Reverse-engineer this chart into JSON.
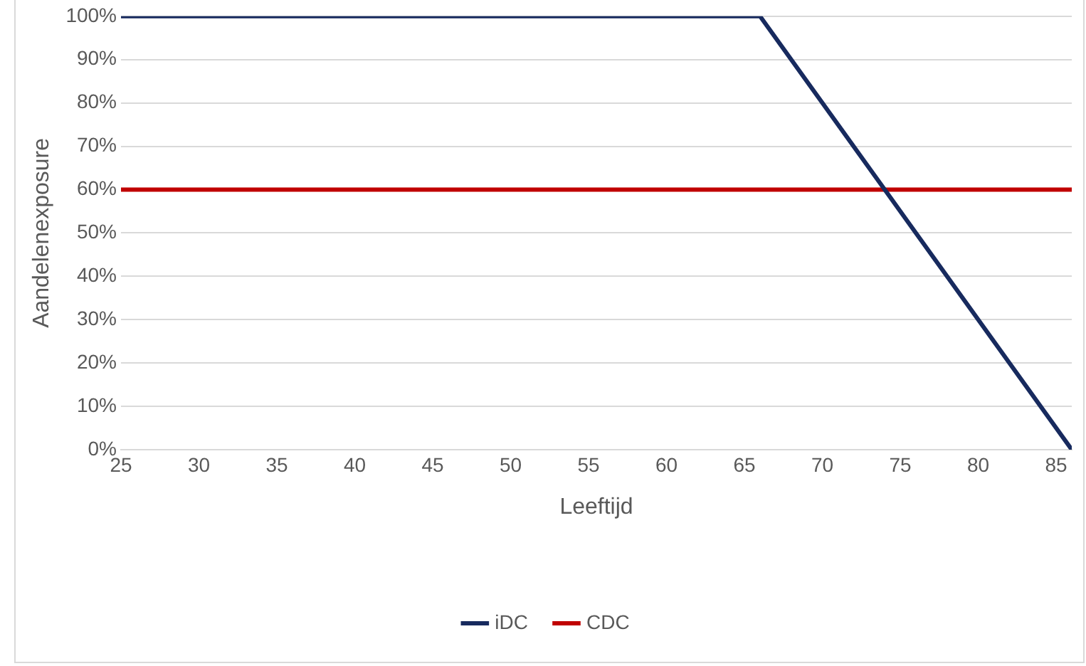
{
  "chart_data": {
    "type": "line",
    "xlabel": "Leeftijd",
    "ylabel": "Aandelenexposure",
    "xlim": [
      25,
      86
    ],
    "xticks": [
      25,
      30,
      35,
      40,
      45,
      50,
      55,
      60,
      65,
      70,
      75,
      80,
      85
    ],
    "ylim": [
      0,
      100
    ],
    "yticks": [
      {
        "value": 0,
        "label": "0%"
      },
      {
        "value": 10,
        "label": "10%"
      },
      {
        "value": 20,
        "label": "20%"
      },
      {
        "value": 30,
        "label": "30%"
      },
      {
        "value": 40,
        "label": "40%"
      },
      {
        "value": 50,
        "label": "50%"
      },
      {
        "value": 60,
        "label": "60%"
      },
      {
        "value": 70,
        "label": "70%"
      },
      {
        "value": 80,
        "label": "80%"
      },
      {
        "value": 90,
        "label": "90%"
      },
      {
        "value": 100,
        "label": "100%"
      }
    ],
    "series": [
      {
        "name": "iDC",
        "color": "#172a5e",
        "x": [
          25,
          66,
          86
        ],
        "values": [
          100,
          100,
          0
        ]
      },
      {
        "name": "CDC",
        "color": "#c00000",
        "x": [
          25,
          86
        ],
        "values": [
          60,
          60
        ]
      }
    ],
    "grid": "y",
    "legend": "bottom",
    "marker": "none",
    "line_style": "solid"
  }
}
